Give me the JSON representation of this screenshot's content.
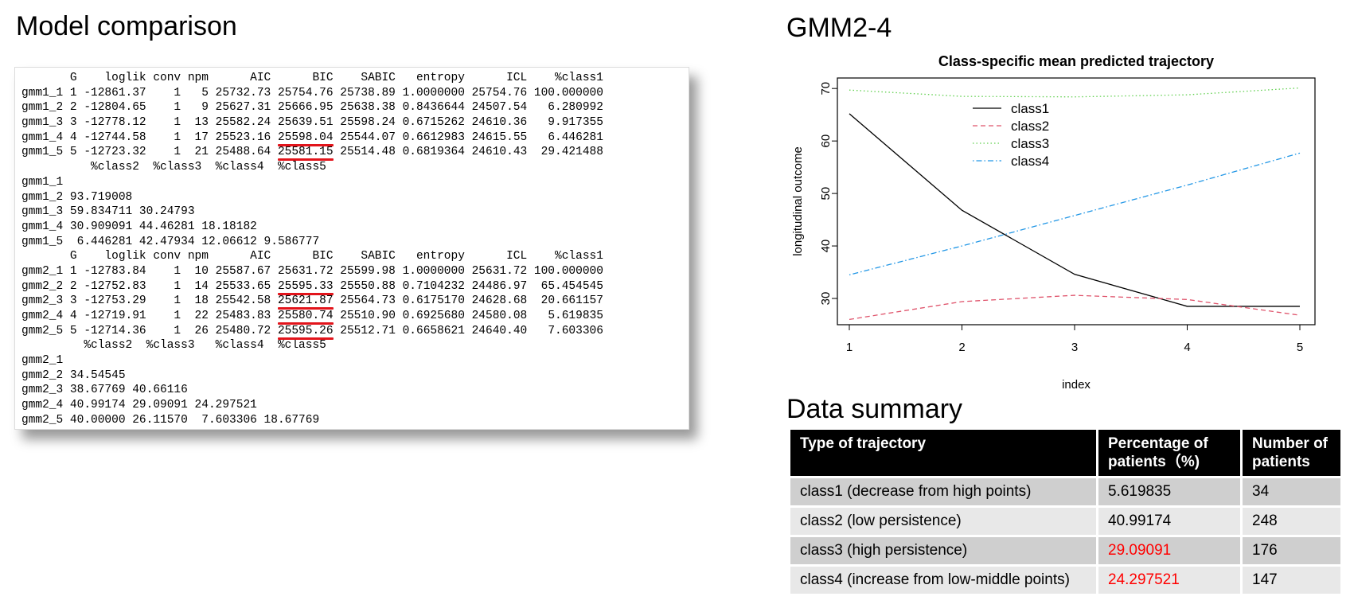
{
  "headings": {
    "model_comparison": "Model comparison",
    "gmm": "GMM2-4",
    "data_summary": "Data summary"
  },
  "console": {
    "lines": [
      "       G    loglik conv npm      AIC      BIC    SABIC   entropy      ICL    %class1",
      "gmm1_1 1 -12861.37    1   5 25732.73 25754.76 25738.89 1.0000000 25754.76 100.000000",
      "gmm1_2 2 -12804.65    1   9 25627.31 25666.95 25638.38 0.8436644 24507.54   6.280992",
      "gmm1_3 3 -12778.12    1  13 25582.24 25639.51 25598.24 0.6715262 24610.36   9.917355",
      "gmm1_4 4 -12744.58    1  17 25523.16 25598.04 25544.07 0.6612983 24615.55   6.446281",
      "gmm1_5 5 -12723.32    1  21 25488.64 25581.15 25514.48 0.6819364 24610.43  29.421488",
      "          %class2  %class3  %class4  %class5",
      "gmm1_1",
      "gmm1_2 93.719008",
      "gmm1_3 59.834711 30.24793",
      "gmm1_4 30.909091 44.46281 18.18182",
      "gmm1_5  6.446281 42.47934 12.06612 9.586777",
      "       G    loglik conv npm      AIC      BIC    SABIC   entropy      ICL    %class1",
      "gmm2_1 1 -12783.84    1  10 25587.67 25631.72 25599.98 1.0000000 25631.72 100.000000",
      "gmm2_2 2 -12752.83    1  14 25533.65 25595.33 25550.88 0.7104232 24486.97  65.454545",
      "gmm2_3 3 -12753.29    1  18 25542.58 25621.87 25564.73 0.6175170 24628.68  20.661157",
      "gmm2_4 4 -12719.91    1  22 25483.83 25580.74 25510.90 0.6925680 24580.08   5.619835",
      "gmm2_5 5 -12714.36    1  26 25480.72 25595.26 25512.71 0.6658621 24640.40   7.603306",
      "         %class2  %class3   %class4  %class5",
      "gmm2_1",
      "gmm2_2 34.54545",
      "gmm2_3 38.67769 40.66116",
      "gmm2_4 40.99174 29.09091 24.297521",
      "gmm2_5 40.00000 26.11570  7.603306 18.67769"
    ],
    "underlined": [
      {
        "line": 4,
        "text": "25598.04"
      },
      {
        "line": 5,
        "text": "25581.15"
      },
      {
        "line": 14,
        "text": "25595.33"
      },
      {
        "line": 15,
        "text": "25621.87"
      },
      {
        "line": 16,
        "text": "25580.74"
      },
      {
        "line": 17,
        "text": "25595.26"
      }
    ],
    "underline_color": "#e2141b"
  },
  "chart_data": {
    "type": "line",
    "title": "Class-specific mean predicted trajectory",
    "xlabel": "index",
    "ylabel": "longitudinal outcome",
    "x": [
      1,
      2,
      3,
      4,
      5
    ],
    "xlim": [
      1,
      5
    ],
    "ylim": [
      25,
      72
    ],
    "yticks": [
      30,
      40,
      50,
      60,
      70
    ],
    "xticks": [
      1,
      2,
      3,
      4,
      5
    ],
    "grid": false,
    "legend_position": "top-left",
    "series": [
      {
        "name": "class1",
        "values": [
          65.2,
          46.8,
          34.6,
          28.5,
          28.5
        ],
        "color": "#000000",
        "dash": "solid"
      },
      {
        "name": "class2",
        "values": [
          26.0,
          29.4,
          30.6,
          29.8,
          26.8
        ],
        "color": "#df536b",
        "dash": "dashed"
      },
      {
        "name": "class3",
        "values": [
          69.7,
          68.5,
          68.4,
          68.8,
          70.1
        ],
        "color": "#61d04f",
        "dash": "dotted"
      },
      {
        "name": "class4",
        "values": [
          34.5,
          40.0,
          45.8,
          51.6,
          57.7
        ],
        "color": "#2297e6",
        "dash": "dotdash"
      }
    ]
  },
  "summary": {
    "headers": [
      "Type of trajectory",
      "Percentage of patients（%)",
      "Number of patients"
    ],
    "rows": [
      {
        "type": "class1 (decrease from high points)",
        "pct": "5.619835",
        "n": "34",
        "highlight": false
      },
      {
        "type": "class2 (low persistence)",
        "pct": "40.99174",
        "n": "248",
        "highlight": false
      },
      {
        "type": "class3 (high persistence)",
        "pct": "29.09091",
        "n": "176",
        "highlight": true
      },
      {
        "type": "class4 (increase from low-middle points)",
        "pct": "24.297521",
        "n": "147",
        "highlight": true
      }
    ],
    "highlight_color": "#ff0000"
  }
}
